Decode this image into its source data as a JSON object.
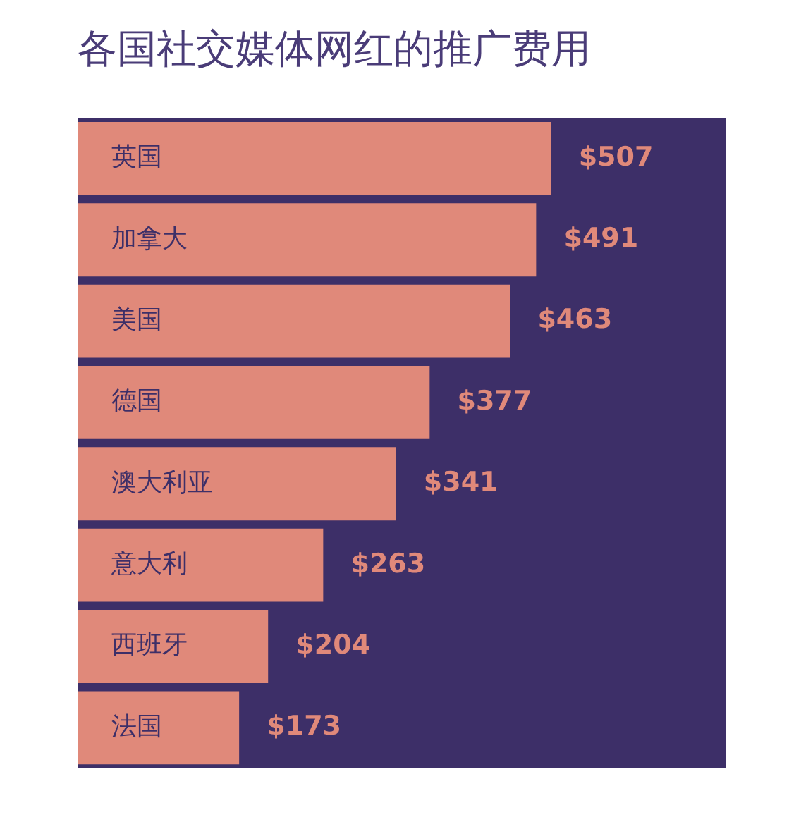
{
  "chart_data": {
    "type": "bar",
    "orientation": "horizontal",
    "title": "各国社交媒体网红的推广费用",
    "categories": [
      "英国",
      "加拿大",
      "美国",
      "德国",
      "澳大利亚",
      "意大利",
      "西班牙",
      "法国"
    ],
    "values": [
      507,
      491,
      463,
      377,
      341,
      263,
      204,
      173
    ],
    "value_labels": [
      "$507",
      "$491",
      "$463",
      "$377",
      "$341",
      "$263",
      "$204",
      "$173"
    ],
    "color": "#e0897a"
  }
}
